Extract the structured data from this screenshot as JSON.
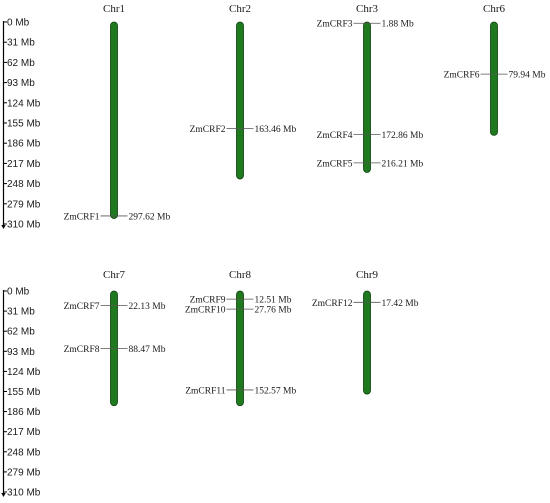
{
  "colors": {
    "chromosome_fill": "#1f7a1f",
    "chromosome_stroke": "#0d3d0d",
    "line": "#555555",
    "text": "#1a1a1a"
  },
  "panels": [
    {
      "scale": {
        "min_mb": 0,
        "max_mb": 310,
        "ticks": [
          "0 Mb",
          "31 Mb",
          "62 Mb",
          "93 Mb",
          "124 Mb",
          "155 Mb",
          "186 Mb",
          "217 Mb",
          "248 Mb",
          "279 Mb",
          "310 Mb"
        ]
      },
      "chromosomes": [
        {
          "name": "Chr1",
          "length_mb": 301.5,
          "genes": [
            {
              "id": "ZmCRF1",
              "pos_mb": 297.62,
              "pos_label": "297.62 Mb"
            }
          ]
        },
        {
          "name": "Chr2",
          "length_mb": 241,
          "genes": [
            {
              "id": "ZmCRF2",
              "pos_mb": 163.46,
              "pos_label": "163.46 Mb"
            }
          ]
        },
        {
          "name": "Chr3",
          "length_mb": 231,
          "genes": [
            {
              "id": "ZmCRF3",
              "pos_mb": 1.88,
              "pos_label": "1.88 Mb"
            },
            {
              "id": "ZmCRF4",
              "pos_mb": 172.86,
              "pos_label": "172.86 Mb"
            },
            {
              "id": "ZmCRF5",
              "pos_mb": 216.21,
              "pos_label": "216.21 Mb"
            }
          ]
        },
        {
          "name": "Chr6",
          "length_mb": 174,
          "genes": [
            {
              "id": "ZmCRF6",
              "pos_mb": 79.94,
              "pos_label": "79.94 Mb"
            }
          ]
        }
      ]
    },
    {
      "scale": {
        "min_mb": 0,
        "max_mb": 310,
        "ticks": [
          "0 Mb",
          "31 Mb",
          "62 Mb",
          "93 Mb",
          "124 Mb",
          "155 Mb",
          "186 Mb",
          "217 Mb",
          "248 Mb",
          "279 Mb",
          "310 Mb"
        ]
      },
      "chromosomes": [
        {
          "name": "Chr7",
          "length_mb": 177,
          "genes": [
            {
              "id": "ZmCRF7",
              "pos_mb": 22.13,
              "pos_label": "22.13 Mb"
            },
            {
              "id": "ZmCRF8",
              "pos_mb": 88.47,
              "pos_label": "88.47 Mb"
            }
          ]
        },
        {
          "name": "Chr8",
          "length_mb": 177,
          "genes": [
            {
              "id": "ZmCRF9",
              "pos_mb": 12.51,
              "pos_label": "12.51 Mb"
            },
            {
              "id": "ZmCRF10",
              "pos_mb": 27.76,
              "pos_label": "27.76 Mb"
            },
            {
              "id": "ZmCRF11",
              "pos_mb": 152.57,
              "pos_label": "152.57 Mb"
            }
          ]
        },
        {
          "name": "Chr9",
          "length_mb": 159,
          "genes": [
            {
              "id": "ZmCRF12",
              "pos_mb": 17.42,
              "pos_label": "17.42 Mb"
            }
          ]
        }
      ]
    }
  ]
}
